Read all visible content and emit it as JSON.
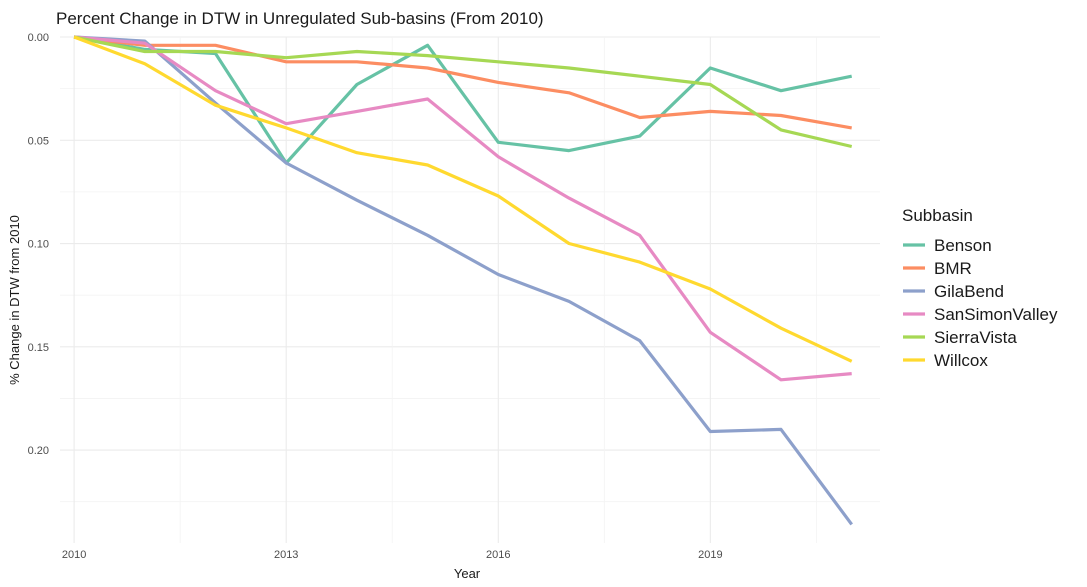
{
  "chart_data": {
    "type": "line",
    "title": "Percent Change in DTW in Unregulated Sub-basins (From 2010)",
    "xlabel": "Year",
    "ylabel": "% Change in DTW from 2010",
    "x": [
      2010,
      2011,
      2012,
      2013,
      2014,
      2015,
      2016,
      2017,
      2018,
      2019,
      2020,
      2021
    ],
    "x_ticks": [
      2010,
      2013,
      2016,
      2019
    ],
    "x_tick_labels": [
      "2010",
      "2013",
      "2016",
      "2019"
    ],
    "y_ticks": [
      0,
      0.05,
      0.1,
      0.15,
      0.2
    ],
    "y_tick_labels": [
      "0.00",
      "0.05",
      "0.10",
      "0.15",
      "0.20"
    ],
    "xlim": [
      2009.8,
      2021.4
    ],
    "ylim": [
      0.0,
      0.245
    ],
    "y_reversed": true,
    "grid": true,
    "legend_title": "Subbasin",
    "legend_position": "right",
    "series": [
      {
        "name": "Benson",
        "color": "#66c2a5",
        "values": [
          0.0,
          0.006,
          0.008,
          0.061,
          0.023,
          0.004,
          0.051,
          0.055,
          0.048,
          0.015,
          0.026,
          0.019
        ]
      },
      {
        "name": "BMR",
        "color": "#fc8d62",
        "values": [
          0.0,
          0.004,
          0.004,
          0.012,
          0.012,
          0.015,
          0.022,
          0.027,
          0.039,
          0.036,
          0.038,
          0.044
        ]
      },
      {
        "name": "GilaBend",
        "color": "#8da0cb",
        "values": [
          0.0,
          0.002,
          0.032,
          0.061,
          0.079,
          0.096,
          0.115,
          0.128,
          0.147,
          0.191,
          0.19,
          0.236
        ]
      },
      {
        "name": "SanSimonValley",
        "color": "#e78ac3",
        "values": [
          0.0,
          0.003,
          0.026,
          0.042,
          0.036,
          0.03,
          0.058,
          0.078,
          0.096,
          0.143,
          0.166,
          0.163
        ]
      },
      {
        "name": "SierraVista",
        "color": "#a6d854",
        "values": [
          0.0,
          0.007,
          0.007,
          0.01,
          0.007,
          0.009,
          0.012,
          0.015,
          0.019,
          0.023,
          0.045,
          0.053
        ]
      },
      {
        "name": "Willcox",
        "color": "#ffd92f",
        "values": [
          0.0,
          0.013,
          0.033,
          0.044,
          0.056,
          0.062,
          0.077,
          0.1,
          0.109,
          0.122,
          0.141,
          0.157
        ]
      }
    ]
  }
}
